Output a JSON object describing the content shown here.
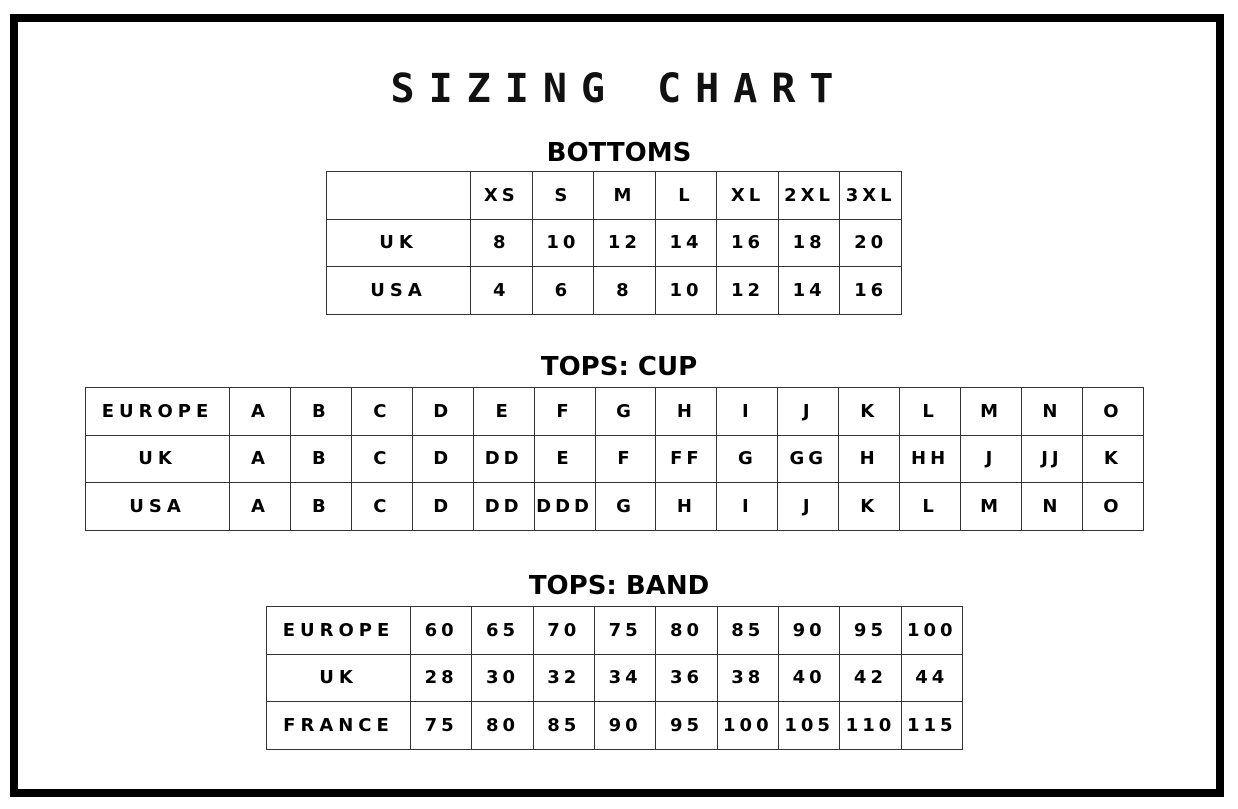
{
  "title": "SIZING CHART",
  "bottoms": {
    "heading": "BOTTOMS",
    "rows": [
      [
        "",
        "XS",
        "S",
        "M",
        "L",
        "XL",
        "2XL",
        "3XL"
      ],
      [
        "UK",
        "8",
        "10",
        "12",
        "14",
        "16",
        "18",
        "20"
      ],
      [
        "USA",
        "4",
        "6",
        "8",
        "10",
        "12",
        "14",
        "16"
      ]
    ]
  },
  "tops_cup": {
    "heading": "TOPS: CUP",
    "rows": [
      [
        "EUROPE",
        "A",
        "B",
        "C",
        "D",
        "E",
        "F",
        "G",
        "H",
        "I",
        "J",
        "K",
        "L",
        "M",
        "N",
        "O"
      ],
      [
        "UK",
        "A",
        "B",
        "C",
        "D",
        "DD",
        "E",
        "F",
        "FF",
        "G",
        "GG",
        "H",
        "HH",
        "J",
        "JJ",
        "K"
      ],
      [
        "USA",
        "A",
        "B",
        "C",
        "D",
        "DD",
        "DDD",
        "G",
        "H",
        "I",
        "J",
        "K",
        "L",
        "M",
        "N",
        "O"
      ]
    ]
  },
  "tops_band": {
    "heading": "TOPS: BAND",
    "rows": [
      [
        "EUROPE",
        "60",
        "65",
        "70",
        "75",
        "80",
        "85",
        "90",
        "95",
        "100"
      ],
      [
        "UK",
        "28",
        "30",
        "32",
        "34",
        "36",
        "38",
        "40",
        "42",
        "44"
      ],
      [
        "FRANCE",
        "75",
        "80",
        "85",
        "90",
        "95",
        "100",
        "105",
        "110",
        "115"
      ]
    ]
  }
}
